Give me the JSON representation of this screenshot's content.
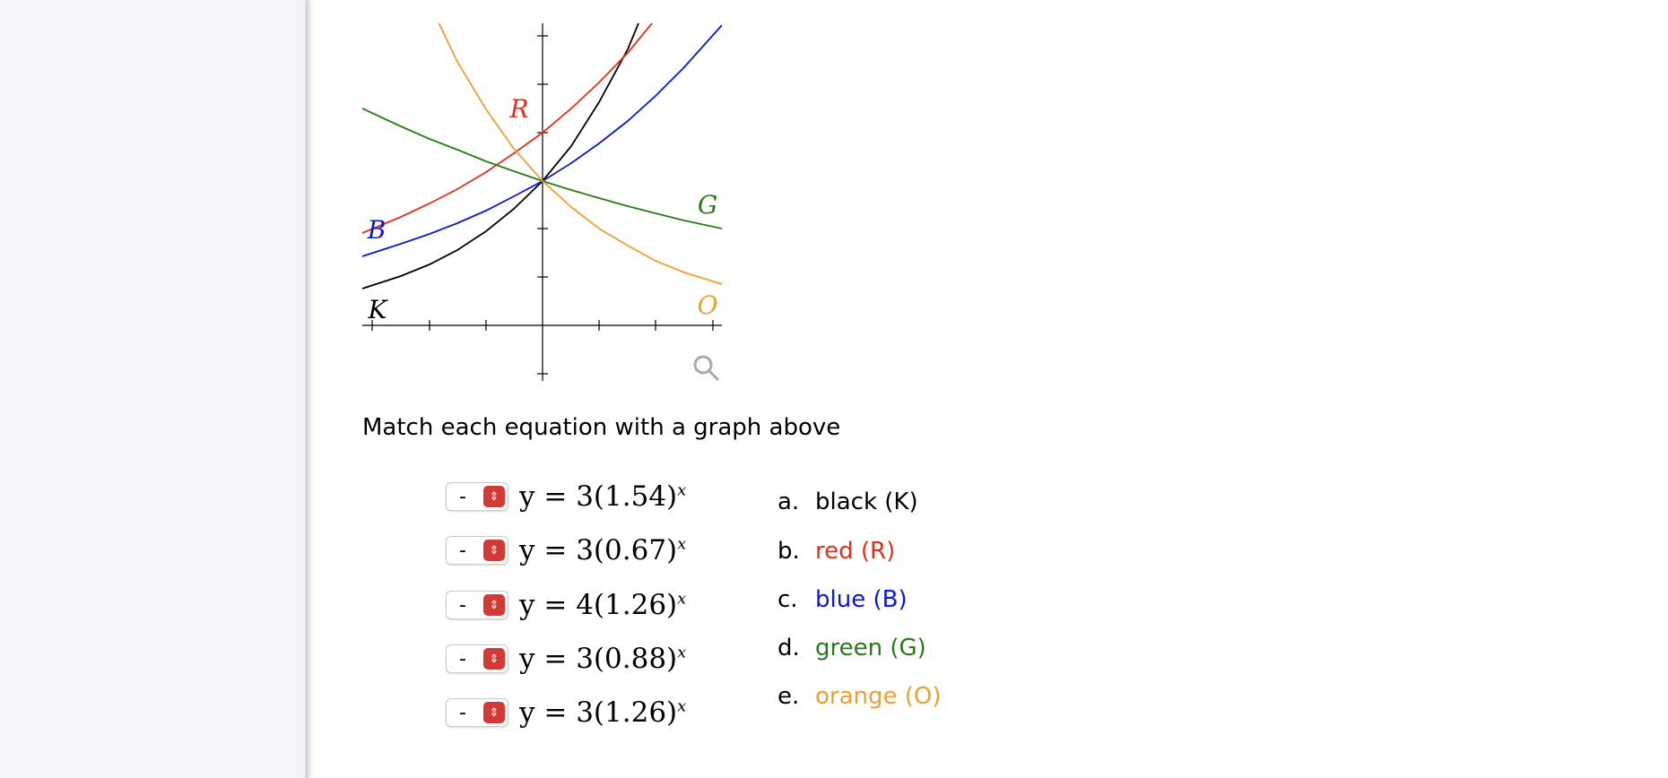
{
  "graph": {
    "labels": [
      {
        "text": "R",
        "color": "#e3301f"
      },
      {
        "text": "G",
        "color": "#2a7a1c"
      },
      {
        "text": "B",
        "color": "#0b16e0"
      },
      {
        "text": "K",
        "color": "#000000"
      },
      {
        "text": "O",
        "color": "#f0a030"
      }
    ]
  },
  "instructions": "Match each equation with a graph above",
  "questions": [
    {
      "select": "-",
      "equation": "y = 3(1.54)",
      "exponent": "x"
    },
    {
      "select": "-",
      "equation": "y = 3(0.67)",
      "exponent": "x"
    },
    {
      "select": "-",
      "equation": "y = 4(1.26)",
      "exponent": "x"
    },
    {
      "select": "-",
      "equation": "y = 3(0.88)",
      "exponent": "x"
    },
    {
      "select": "-",
      "equation": "y = 3(1.26)",
      "exponent": "x"
    }
  ],
  "options": [
    {
      "letter": "a.",
      "text": "black (K)",
      "color": "#000000"
    },
    {
      "letter": "b.",
      "text": "red (R)",
      "color": "#e3301f"
    },
    {
      "letter": "c.",
      "text": "blue (B)",
      "color": "#0b16e0"
    },
    {
      "letter": "d.",
      "text": "green (G)",
      "color": "#2a7a1c"
    },
    {
      "letter": "e.",
      "text": "orange (O)",
      "color": "#f0a030"
    }
  ]
}
